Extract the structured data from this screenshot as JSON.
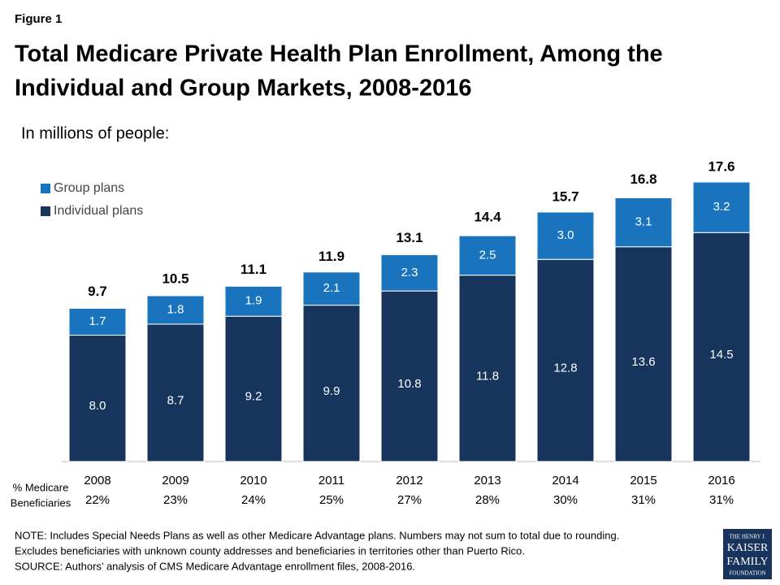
{
  "chart_data": {
    "type": "stacked_bar",
    "figure_label": "Figure 1",
    "title": [
      "Total Medicare Private Health Plan Enrollment, Among the",
      "Individual and Group Markets, 2008-2016"
    ],
    "subtitle": "In millions of people:",
    "categories": [
      "2008",
      "2009",
      "2010",
      "2011",
      "2012",
      "2013",
      "2014",
      "2015",
      "2016"
    ],
    "series": [
      {
        "name": "Individual plans",
        "color": "#17345c",
        "values": [
          8.0,
          8.7,
          9.2,
          9.9,
          10.8,
          11.8,
          12.8,
          13.6,
          14.5
        ],
        "value_labels": [
          "8.0",
          "8.7",
          "9.2",
          "9.9",
          "10.8",
          "11.8",
          "12.8",
          "13.6",
          "14.5"
        ]
      },
      {
        "name": "Group plans",
        "color": "#1a74bd",
        "values": [
          1.7,
          1.8,
          1.9,
          2.1,
          2.3,
          2.5,
          3.0,
          3.1,
          3.2
        ],
        "value_labels": [
          "1.7",
          "1.8",
          "1.9",
          "2.1",
          "2.3",
          "2.5",
          "3.0",
          "3.1",
          "3.2"
        ]
      }
    ],
    "totals": [
      9.7,
      10.5,
      11.1,
      11.9,
      13.1,
      14.4,
      15.7,
      16.8,
      17.6
    ],
    "percent_row_label": [
      "% Medicare",
      "Beneficiaries"
    ],
    "percent_row": [
      "22%",
      "23%",
      "24%",
      "25%",
      "27%",
      "28%",
      "30%",
      "31%",
      "31%"
    ],
    "legend": "upper left"
  },
  "notes": [
    "NOTE:  Includes Special Needs Plans as well as other Medicare Advantage plans.   Numbers may not sum to total due to rounding.",
    "Excludes beneficiaries with unknown county addresses and beneficiaries in territories other than Puerto Rico.",
    "SOURCE:  Authors’ analysis of CMS Medicare Advantage enrollment files, 2008-2016."
  ],
  "logo": [
    "THE HENRY J.",
    "KAISER",
    "FAMILY",
    "FOUNDATION"
  ]
}
